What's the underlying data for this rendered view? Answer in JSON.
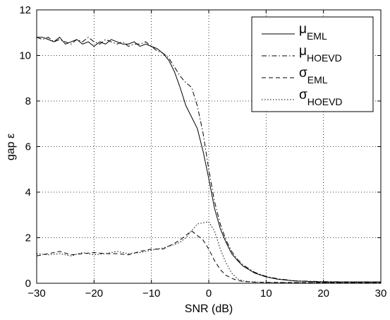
{
  "chart_data": {
    "type": "line",
    "title": "",
    "xlabel": "SNR (dB)",
    "ylabel": "gap ε",
    "xlim": [
      -30,
      30
    ],
    "ylim": [
      0,
      12
    ],
    "x_ticks": [
      -30,
      -20,
      -10,
      0,
      10,
      20,
      30
    ],
    "y_ticks": [
      0,
      2,
      4,
      6,
      8,
      10,
      12
    ],
    "grid": true,
    "legend_position": "top-right",
    "series": [
      {
        "name": "μEML",
        "symbol": "μ",
        "subscript": "EML",
        "line_style": "solid",
        "x": [
          -30,
          -29,
          -28,
          -27,
          -26,
          -25,
          -24,
          -23,
          -22,
          -21,
          -20,
          -19,
          -18,
          -17,
          -16,
          -15,
          -14,
          -13,
          -12,
          -11,
          -10,
          -9,
          -8,
          -7,
          -6,
          -5,
          -4,
          -3,
          -2,
          -1,
          0,
          1,
          2,
          3,
          4,
          5,
          6,
          8,
          10,
          12,
          15,
          20,
          25,
          30
        ],
        "y": [
          10.8,
          10.8,
          10.7,
          10.6,
          10.8,
          10.5,
          10.6,
          10.7,
          10.5,
          10.6,
          10.4,
          10.6,
          10.5,
          10.7,
          10.6,
          10.5,
          10.5,
          10.6,
          10.4,
          10.5,
          10.4,
          10.3,
          10.1,
          9.8,
          9.3,
          8.6,
          7.8,
          7.3,
          6.8,
          5.8,
          4.6,
          3.3,
          2.4,
          1.8,
          1.3,
          1.0,
          0.75,
          0.45,
          0.28,
          0.18,
          0.1,
          0.06,
          0.06,
          0.06
        ]
      },
      {
        "name": "μHOEVD",
        "symbol": "μ",
        "subscript": "HOEVD",
        "line_style": "dashdot",
        "x": [
          -30,
          -29,
          -28,
          -27,
          -26,
          -25,
          -24,
          -23,
          -22,
          -21,
          -20,
          -19,
          -18,
          -17,
          -16,
          -15,
          -14,
          -13,
          -12,
          -11,
          -10,
          -9,
          -8,
          -7,
          -6,
          -5,
          -4,
          -3,
          -2,
          -1,
          0,
          1,
          2,
          3,
          4,
          5,
          6,
          8,
          10,
          12,
          15,
          20,
          25,
          30
        ],
        "y": [
          10.8,
          10.7,
          10.8,
          10.6,
          10.7,
          10.6,
          10.5,
          10.7,
          10.6,
          10.8,
          10.6,
          10.5,
          10.7,
          10.6,
          10.5,
          10.6,
          10.4,
          10.5,
          10.5,
          10.6,
          10.4,
          10.2,
          10.1,
          9.9,
          9.5,
          9.1,
          8.8,
          8.6,
          7.8,
          6.6,
          5.0,
          3.6,
          2.6,
          1.9,
          1.4,
          1.05,
          0.8,
          0.48,
          0.3,
          0.2,
          0.11,
          0.07,
          0.06,
          0.06
        ]
      },
      {
        "name": "σEML",
        "symbol": "σ",
        "subscript": "EML",
        "line_style": "dashed",
        "x": [
          -30,
          -28,
          -26,
          -24,
          -22,
          -20,
          -18,
          -16,
          -14,
          -12,
          -10,
          -8,
          -6,
          -5,
          -4,
          -3,
          -2,
          -1,
          0,
          1,
          2,
          3,
          4,
          5,
          6,
          8,
          10,
          15,
          20,
          30
        ],
        "y": [
          1.2,
          1.3,
          1.4,
          1.25,
          1.3,
          1.35,
          1.3,
          1.3,
          1.25,
          1.4,
          1.5,
          1.5,
          1.75,
          1.9,
          2.1,
          2.3,
          2.1,
          1.9,
          1.5,
          1.0,
          0.6,
          0.35,
          0.22,
          0.12,
          0.08,
          0.05,
          0.04,
          0.03,
          0.03,
          0.03
        ]
      },
      {
        "name": "σHOEVD",
        "symbol": "σ",
        "subscript": "HOEVD",
        "line_style": "dotted",
        "x": [
          -30,
          -28,
          -26,
          -24,
          -22,
          -20,
          -18,
          -16,
          -14,
          -12,
          -10,
          -8,
          -6,
          -5,
          -4,
          -3,
          -2,
          -1,
          0,
          1,
          2,
          3,
          4,
          5,
          6,
          8,
          10,
          15,
          20,
          30
        ],
        "y": [
          1.3,
          1.25,
          1.3,
          1.2,
          1.35,
          1.25,
          1.3,
          1.4,
          1.3,
          1.35,
          1.45,
          1.55,
          1.7,
          1.8,
          2.0,
          2.3,
          2.6,
          2.65,
          2.7,
          2.3,
          1.5,
          0.9,
          0.45,
          0.2,
          0.1,
          0.06,
          0.04,
          0.03,
          0.03,
          0.03
        ]
      }
    ]
  }
}
